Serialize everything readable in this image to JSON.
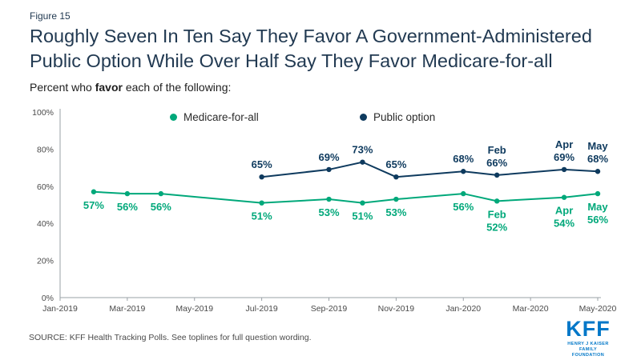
{
  "figure_label": "Figure 15",
  "title": "Roughly Seven In Ten Say They Favor A Government-Administered\nPublic Option While Over Half Say They Favor Medicare-for-all",
  "subtitle": {
    "prefix": "Percent who ",
    "bold": "favor",
    "suffix": " each of the following:"
  },
  "source": "SOURCE: KFF Health Tracking Polls. See toplines for full question wording.",
  "logo": {
    "name": "KFF",
    "tagline_line1": "HENRY J KAISER",
    "tagline_line2": "FAMILY FOUNDATION",
    "color": "#0077c8"
  },
  "colors": {
    "green": "#00a87a",
    "navy": "#0e3a5e",
    "axis_line": "#9aa0a6",
    "tick_text": "#4a4a4a",
    "title_text": "#223a52"
  },
  "chart_data": {
    "type": "line",
    "grid": false,
    "legend_position": "top-center-inside",
    "x_axis": {
      "tick_labels": [
        "Jan-2019",
        "Mar-2019",
        "May-2019",
        "Jul-2019",
        "Sep-2019",
        "Nov-2019",
        "Jan-2020",
        "Mar-2020",
        "May-2020"
      ],
      "tick_month_index": [
        0,
        2,
        4,
        6,
        8,
        10,
        12,
        14,
        16
      ]
    },
    "y_axis": {
      "ticks": [
        "0%",
        "20%",
        "40%",
        "60%",
        "80%",
        "100%"
      ],
      "tick_values": [
        0,
        20,
        40,
        60,
        80,
        100
      ],
      "min": 0,
      "max": 100
    },
    "series": [
      {
        "name": "Medicare-for-all",
        "color": "#00a87a",
        "label_position": "below",
        "points": [
          {
            "x": 1,
            "value": 57,
            "label": "57%"
          },
          {
            "x": 2,
            "value": 56,
            "label": "56%"
          },
          {
            "x": 3,
            "value": 56,
            "label": "56%"
          },
          {
            "x": 6,
            "value": 51,
            "label": "51%"
          },
          {
            "x": 8,
            "value": 53,
            "label": "53%"
          },
          {
            "x": 9,
            "value": 51,
            "label": "51%"
          },
          {
            "x": 10,
            "value": 53,
            "label": "53%"
          },
          {
            "x": 12,
            "value": 56,
            "label": "56%"
          },
          {
            "x": 13,
            "value": 52,
            "label": "52%",
            "label_prefix": "Feb"
          },
          {
            "x": 15,
            "value": 54,
            "label": "54%",
            "label_prefix": "Apr"
          },
          {
            "x": 16,
            "value": 56,
            "label": "56%",
            "label_prefix": "May"
          }
        ]
      },
      {
        "name": "Public option",
        "color": "#0e3a5e",
        "label_position": "above",
        "points": [
          {
            "x": 6,
            "value": 65,
            "label": "65%"
          },
          {
            "x": 8,
            "value": 69,
            "label": "69%"
          },
          {
            "x": 9,
            "value": 73,
            "label": "73%"
          },
          {
            "x": 10,
            "value": 65,
            "label": "65%"
          },
          {
            "x": 12,
            "value": 68,
            "label": "68%"
          },
          {
            "x": 13,
            "value": 66,
            "label": "66%",
            "label_prefix": "Feb"
          },
          {
            "x": 15,
            "value": 69,
            "label": "69%",
            "label_prefix": "Apr"
          },
          {
            "x": 16,
            "value": 68,
            "label": "68%",
            "label_prefix": "May"
          }
        ]
      }
    ]
  }
}
